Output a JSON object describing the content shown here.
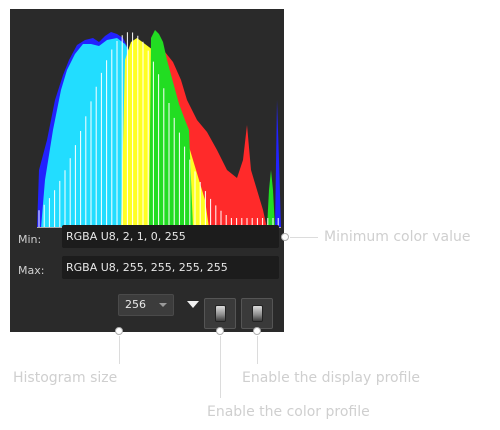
{
  "histogram_panel": {
    "background_color": "#2a2a2a",
    "channel_colors": {
      "red": "#ff2a2a",
      "green": "#22dd22",
      "blue": "#2222ff",
      "cyan": "#22ddff",
      "yellow": "#ffff22",
      "white": "#ffffff"
    },
    "min": {
      "label": "Min:",
      "value": "RGBA U8, 2, 1, 0, 255"
    },
    "max": {
      "label": "Max:",
      "value": "RGBA U8, 255, 255, 255, 255"
    },
    "controls": {
      "histogram_size": "256",
      "dropdown_icon": "chevron-down-icon",
      "menu_icon": "triangle-down-icon",
      "color_profile_icon": "profile-gradient-icon",
      "display_profile_icon": "profile-gradient-icon"
    }
  },
  "callouts": {
    "minimum_color_value": "Minimum color value",
    "histogram_size": "Histogram size",
    "enable_display_profile": "Enable the display profile",
    "enable_color_profile": "Enable the color profile"
  }
}
